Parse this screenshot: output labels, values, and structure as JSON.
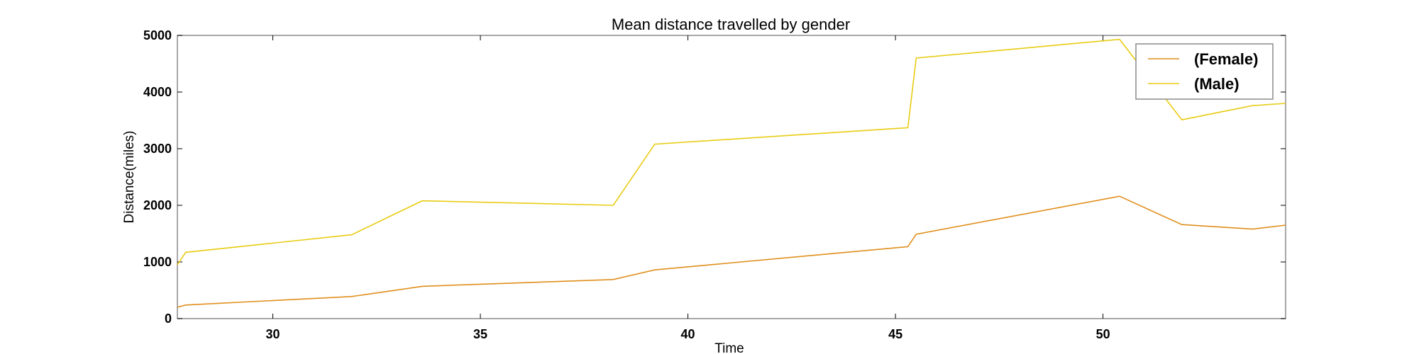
{
  "chart_data": {
    "type": "line",
    "title": "Mean distance travelled by gender",
    "xlabel": "Time",
    "ylabel": "Distance(miles)",
    "xlim": [
      27.7,
      54.4
    ],
    "ylim": [
      0,
      5000
    ],
    "xticks": [
      30,
      35,
      40,
      45,
      50
    ],
    "yticks": [
      0,
      1000,
      2000,
      3000,
      4000,
      5000
    ],
    "grid": false,
    "legend_position": "top-right",
    "series": [
      {
        "name": "(Female)",
        "color": "#e08e1c",
        "x": [
          27.7,
          27.9,
          31.9,
          33.6,
          38.2,
          39.2,
          45.3,
          45.5,
          50.4,
          51.9,
          53.6,
          54.4
        ],
        "y": [
          200,
          240,
          390,
          570,
          690,
          860,
          1270,
          1490,
          2160,
          1660,
          1580,
          1650
        ]
      },
      {
        "name": "(Male)",
        "color": "#e8cc12",
        "x": [
          27.7,
          27.9,
          31.9,
          33.6,
          38.2,
          39.2,
          45.3,
          45.5,
          50.4,
          51.9,
          53.6,
          54.4
        ],
        "y": [
          950,
          1170,
          1480,
          2080,
          2000,
          3080,
          3370,
          4600,
          4930,
          3510,
          3760,
          3800
        ]
      }
    ]
  }
}
